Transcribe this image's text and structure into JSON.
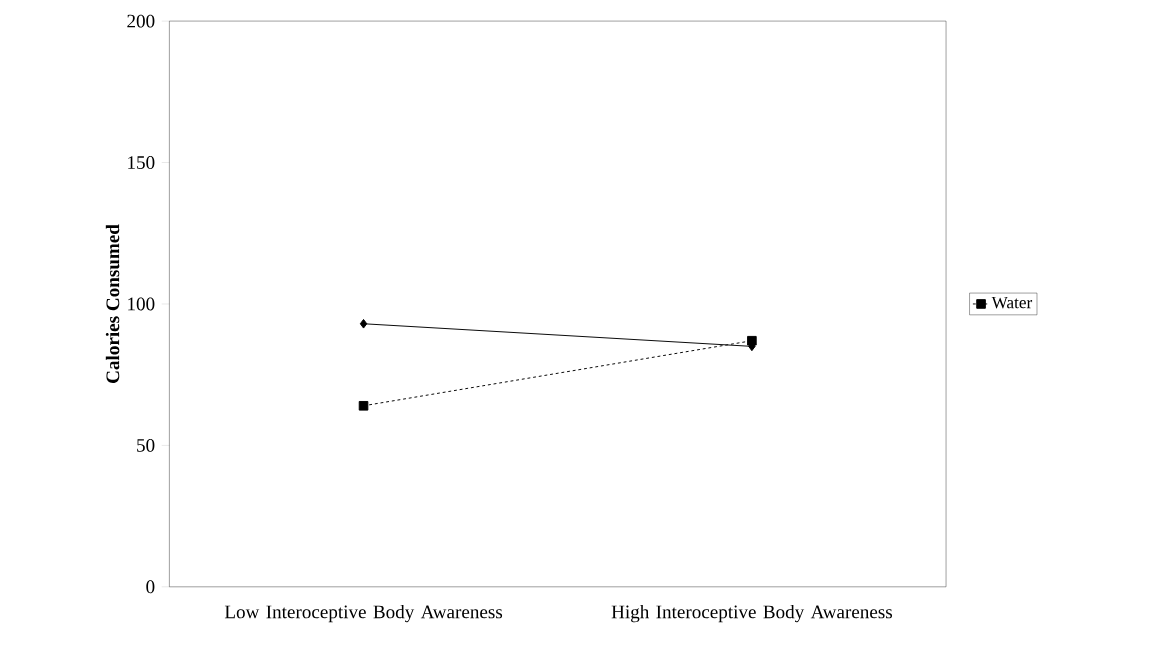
{
  "chart_data": {
    "type": "line",
    "ylabel": "Calories Consumed",
    "categories": [
      "Low Interoceptive Body Awareness",
      "High Interoceptive Body Awareness"
    ],
    "series": [
      {
        "color": "#000000",
        "values": [
          93,
          85
        ],
        "marker": "diamond",
        "line_style": "solid"
      },
      {
        "name": "Water",
        "color": "#000000",
        "values": [
          64,
          87
        ],
        "marker": "square",
        "line_style": "dashed"
      }
    ],
    "ylim": [
      0,
      200
    ],
    "yticks": [
      0,
      50,
      100,
      150,
      200
    ],
    "grid": false,
    "legend": "right"
  }
}
